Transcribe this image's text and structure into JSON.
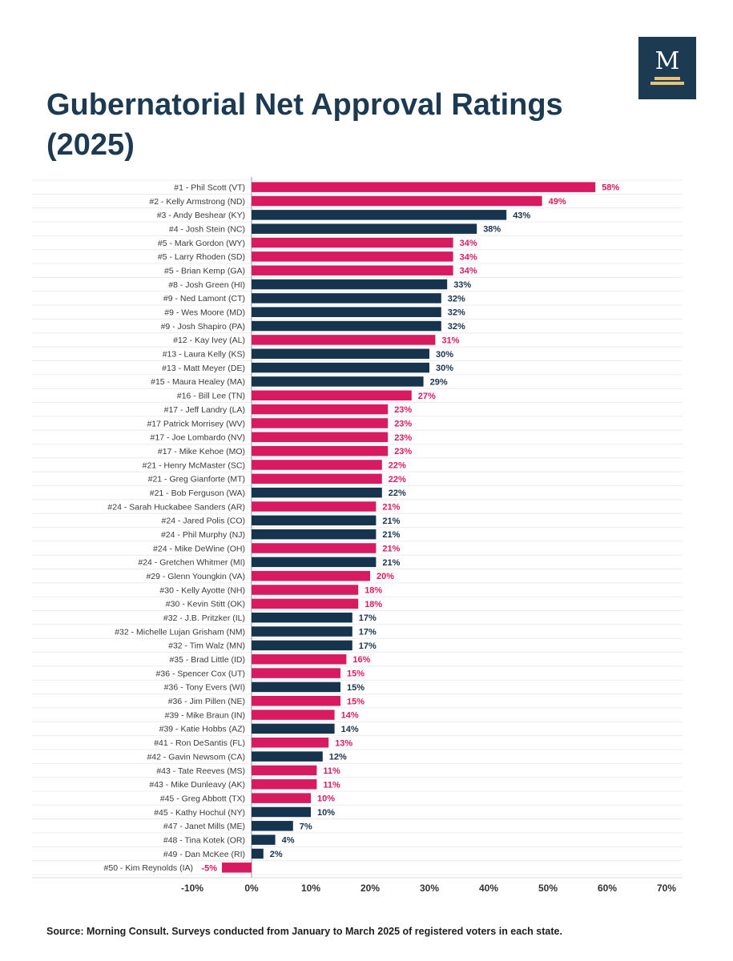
{
  "logo": {
    "letter": "M"
  },
  "title": "Gubernatorial Net Approval Ratings (2025)",
  "source": "Source: Morning Consult. Surveys conducted from January to March 2025 of registered voters in each state.",
  "colors": {
    "pink": "#d81b60",
    "navy": "#17344f",
    "title": "#1c3a52"
  },
  "chart_data": {
    "type": "bar",
    "orientation": "horizontal",
    "xlim": [
      -10,
      70
    ],
    "xticks": [
      "-10%",
      "0%",
      "10%",
      "20%",
      "30%",
      "40%",
      "50%",
      "60%",
      "70%"
    ],
    "grid": true,
    "categories": [
      "#1 - Phil Scott (VT)",
      "#2 - Kelly Armstrong (ND)",
      "#3 - Andy Beshear (KY)",
      "#4 - Josh Stein (NC)",
      "#5 - Mark Gordon (WY)",
      "#5 - Larry Rhoden (SD)",
      "#5 - Brian Kemp (GA)",
      "#8 - Josh Green (HI)",
      "#9 - Ned Lamont (CT)",
      "#9 - Wes Moore (MD)",
      "#9 - Josh Shapiro (PA)",
      "#12 - Kay Ivey (AL)",
      "#13 - Laura Kelly (KS)",
      "#13 - Matt Meyer (DE)",
      "#15 - Maura Healey (MA)",
      "#16 - Bill Lee (TN)",
      "#17 - Jeff Landry (LA)",
      "#17 Patrick Morrisey (WV)",
      "#17 - Joe Lombardo (NV)",
      "#17 - Mike Kehoe (MO)",
      "#21 - Henry McMaster (SC)",
      "#21 - Greg Gianforte (MT)",
      "#21 - Bob Ferguson (WA)",
      "#24 - Sarah Huckabee Sanders (AR)",
      "#24 - Jared Polis (CO)",
      "#24 - Phil Murphy (NJ)",
      "#24 - Mike DeWine (OH)",
      "#24 - Gretchen Whitmer (MI)",
      "#29 - Glenn Youngkin (VA)",
      "#30 - Kelly Ayotte (NH)",
      "#30 - Kevin Stitt (OK)",
      "#32 - J.B. Pritzker (IL)",
      "#32 - Michelle Lujan Grisham (NM)",
      "#32 - Tim Walz (MN)",
      "#35 - Brad Little (ID)",
      "#36 - Spencer Cox (UT)",
      "#36 - Tony Evers (WI)",
      "#36 - Jim Pillen (NE)",
      "#39 - Mike Braun (IN)",
      "#39 - Katie Hobbs (AZ)",
      "#41 - Ron DeSantis (FL)",
      "#42 - Gavin Newsom (CA)",
      "#43 - Tate Reeves (MS)",
      "#43 - Mike Dunleavy (AK)",
      "#45 - Greg Abbott (TX)",
      "#45 - Kathy Hochul (NY)",
      "#47 - Janet Mills (ME)",
      "#48 - Tina Kotek (OR)",
      "#49 - Dan McKee (RI)",
      "#50 - Kim Reynolds (IA)"
    ],
    "values": [
      58,
      49,
      43,
      38,
      34,
      34,
      34,
      33,
      32,
      32,
      32,
      31,
      30,
      30,
      29,
      27,
      23,
      23,
      23,
      23,
      22,
      22,
      22,
      21,
      21,
      21,
      21,
      21,
      20,
      18,
      18,
      17,
      17,
      17,
      16,
      15,
      15,
      15,
      14,
      14,
      13,
      12,
      11,
      11,
      10,
      10,
      7,
      4,
      2,
      -5
    ],
    "labels": [
      "58%",
      "49%",
      "43%",
      "38%",
      "34%",
      "34%",
      "34%",
      "33%",
      "32%",
      "32%",
      "32%",
      "31%",
      "30%",
      "30%",
      "29%",
      "27%",
      "23%",
      "23%",
      "23%",
      "23%",
      "22%",
      "22%",
      "22%",
      "21%",
      "21%",
      "21%",
      "21%",
      "21%",
      "20%",
      "18%",
      "18%",
      "17%",
      "17%",
      "17%",
      "16%",
      "15%",
      "15%",
      "15%",
      "14%",
      "14%",
      "13%",
      "12%",
      "11%",
      "11%",
      "10%",
      "10%",
      "7%",
      "4%",
      "2%",
      "-5%"
    ],
    "colors": [
      "pink",
      "pink",
      "navy",
      "navy",
      "pink",
      "pink",
      "pink",
      "navy",
      "navy",
      "navy",
      "navy",
      "pink",
      "navy",
      "navy",
      "navy",
      "pink",
      "pink",
      "pink",
      "pink",
      "pink",
      "pink",
      "pink",
      "navy",
      "pink",
      "navy",
      "navy",
      "pink",
      "navy",
      "pink",
      "pink",
      "pink",
      "navy",
      "navy",
      "navy",
      "pink",
      "pink",
      "navy",
      "pink",
      "pink",
      "navy",
      "pink",
      "navy",
      "pink",
      "pink",
      "pink",
      "navy",
      "navy",
      "navy",
      "navy",
      "pink"
    ]
  }
}
